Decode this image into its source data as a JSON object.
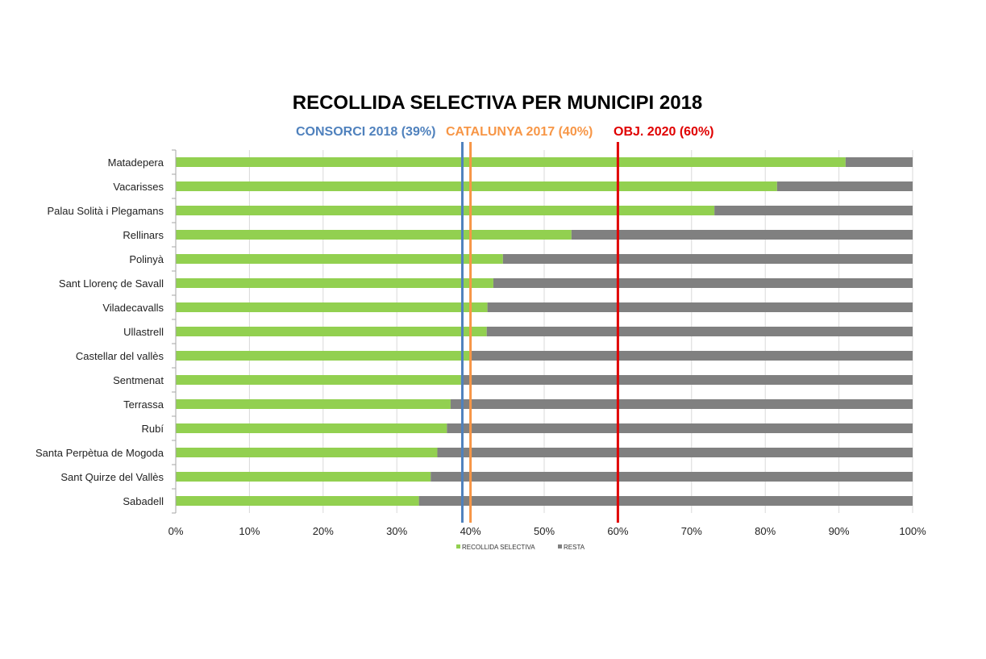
{
  "chart_data": {
    "type": "bar",
    "orientation": "horizontal",
    "stacked": true,
    "title": "RECOLLIDA SELECTIVA PER MUNICIPI 2018",
    "categories": [
      "Matadepera",
      "Vacarisses",
      "Palau Solità i Plegamans",
      "Rellinars",
      "Polinyà",
      "Sant Llorenç de Savall",
      "Viladecavalls",
      "Ullastrell",
      "Castellar del vallès",
      "Sentmenat",
      "Terrassa",
      "Rubí",
      "Santa Perpètua de Mogoda",
      "Sant Quirze del Vallès",
      "Sabadell"
    ],
    "series": [
      {
        "name": "RECOLLIDA SELECTIVA",
        "color": "#92d050",
        "values": [
          90.9,
          81.6,
          73.1,
          53.7,
          44.4,
          43.1,
          42.3,
          42.2,
          40.0,
          38.7,
          37.3,
          36.8,
          35.5,
          34.6,
          33.0
        ]
      },
      {
        "name": "RESTA",
        "color": "#808080",
        "values": [
          9.1,
          18.4,
          26.9,
          46.3,
          55.6,
          56.9,
          57.7,
          57.8,
          60.0,
          61.3,
          62.7,
          63.2,
          64.5,
          65.4,
          67.0
        ]
      }
    ],
    "xlim": [
      0,
      100
    ],
    "xticks": [
      "0%",
      "10%",
      "20%",
      "30%",
      "40%",
      "50%",
      "60%",
      "70%",
      "80%",
      "90%",
      "100%"
    ],
    "grid": true,
    "legend_position": "bottom",
    "reference_lines": [
      {
        "label": "CONSORCI 2018 (39%)",
        "value": 39,
        "color": "#4f81bd"
      },
      {
        "label": "CATALUNYA 2017 (40%)",
        "value": 40,
        "color": "#f79646"
      },
      {
        "label": "OBJ. 2020 (60%)",
        "value": 60,
        "color": "#e00000"
      }
    ]
  }
}
